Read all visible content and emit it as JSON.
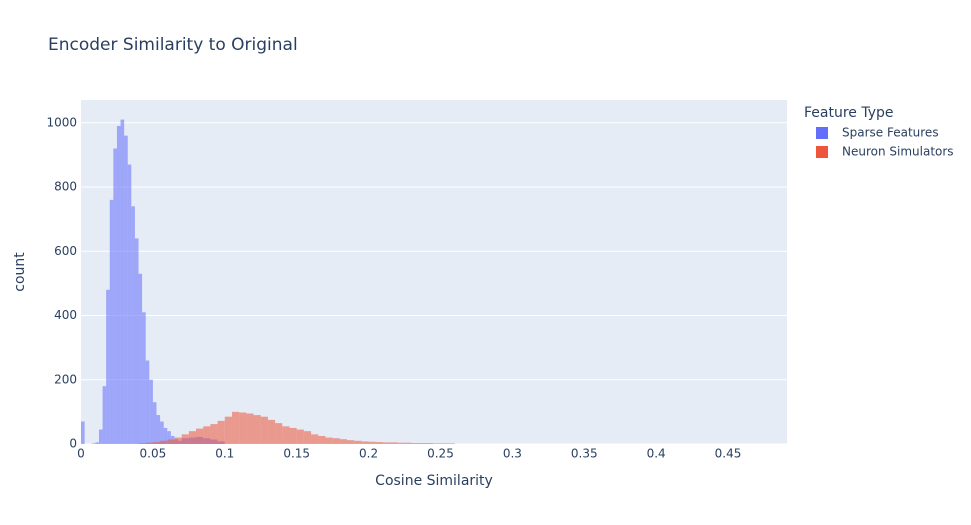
{
  "chart_data": {
    "type": "histogram",
    "title": "Encoder Similarity to Original",
    "x_label": "Cosine Similarity",
    "y_label": "count",
    "legend_title": "Feature Type",
    "legend_position": "right",
    "barmode": "overlay",
    "opacity": 0.55,
    "grid": true,
    "xlim": [
      0,
      0.491
    ],
    "xticks": [
      0,
      0.05,
      0.1,
      0.15,
      0.2,
      0.25,
      0.3,
      0.35,
      0.4,
      0.45
    ],
    "ylim": [
      0,
      1071
    ],
    "yticks": [
      0,
      200,
      400,
      600,
      800,
      1000
    ],
    "series": [
      {
        "name": "Sparse Features",
        "color": "#636efa",
        "bins": [
          0,
          0.0025,
          0.005,
          0.0075,
          0.01,
          0.0125,
          0.015,
          0.0175,
          0.02,
          0.0225,
          0.025,
          0.0275,
          0.03,
          0.0325,
          0.035,
          0.0375,
          0.04,
          0.0425,
          0.045,
          0.0475,
          0.05,
          0.0525,
          0.055,
          0.0575,
          0.06,
          0.0625,
          0.065,
          0.0675,
          0.07,
          0.075,
          0.08,
          0.085,
          0.09,
          0.095,
          0.1
        ],
        "values": [
          70,
          0,
          0,
          2,
          5,
          45,
          180,
          480,
          760,
          920,
          990,
          1010,
          960,
          870,
          740,
          640,
          530,
          410,
          260,
          200,
          130,
          90,
          70,
          50,
          40,
          25,
          15,
          10,
          18,
          20,
          22,
          18,
          14,
          8
        ]
      },
      {
        "name": "Neuron Simulators",
        "color": "#ef553b",
        "bins": [
          0.04,
          0.045,
          0.05,
          0.055,
          0.06,
          0.065,
          0.07,
          0.075,
          0.08,
          0.085,
          0.09,
          0.095,
          0.1,
          0.105,
          0.11,
          0.115,
          0.12,
          0.125,
          0.13,
          0.135,
          0.14,
          0.145,
          0.15,
          0.155,
          0.16,
          0.165,
          0.17,
          0.175,
          0.18,
          0.185,
          0.19,
          0.195,
          0.2,
          0.205,
          0.21,
          0.215,
          0.22,
          0.225,
          0.23,
          0.235,
          0.24,
          0.245,
          0.25,
          0.255,
          0.26
        ],
        "values": [
          2,
          4,
          6,
          10,
          14,
          20,
          30,
          40,
          48,
          55,
          62,
          72,
          85,
          100,
          98,
          95,
          90,
          85,
          75,
          65,
          55,
          50,
          45,
          40,
          30,
          25,
          20,
          18,
          15,
          12,
          10,
          8,
          7,
          6,
          5,
          5,
          4,
          4,
          3,
          3,
          3,
          2,
          2,
          2
        ]
      }
    ]
  }
}
